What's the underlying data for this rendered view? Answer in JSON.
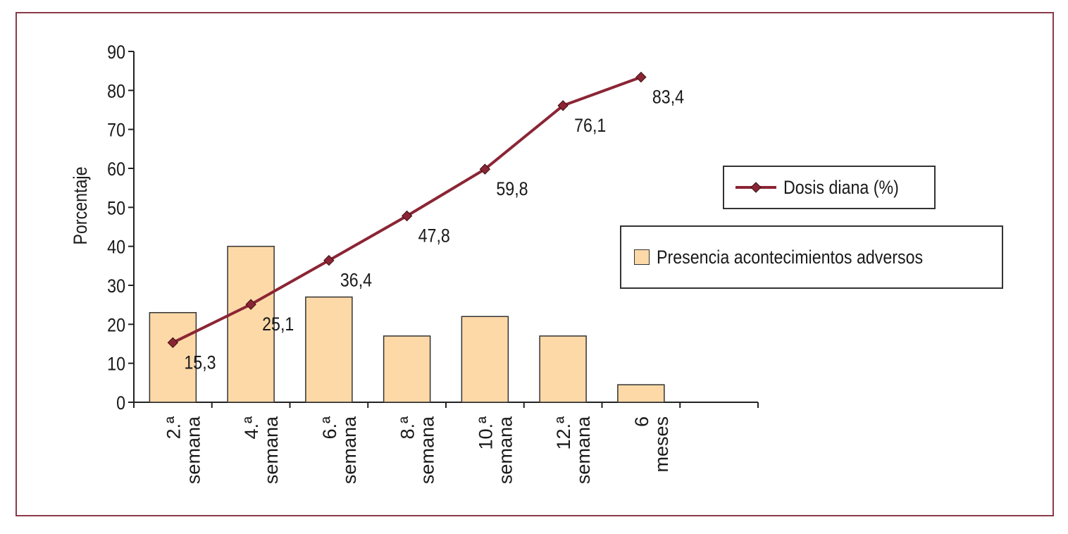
{
  "chart_data": {
    "type": "bar",
    "title": "",
    "xlabel": "",
    "ylabel": "Porcentaje",
    "ylim": [
      0,
      90
    ],
    "yticks": [
      0,
      10,
      20,
      30,
      40,
      50,
      60,
      70,
      80,
      90
    ],
    "categories": [
      [
        "2.ª",
        "semana"
      ],
      [
        "4.ª",
        "semana"
      ],
      [
        "6.ª",
        "semana"
      ],
      [
        "8.ª",
        "semana"
      ],
      [
        "10.ª",
        "semana"
      ],
      [
        "12.ª",
        "semana"
      ],
      [
        "6",
        "meses"
      ]
    ],
    "series": [
      {
        "name": "Presencia acontecimientos adversos",
        "type": "bar",
        "color": "#fdd9a8",
        "values": [
          23,
          40,
          27,
          17,
          22,
          17,
          4.5
        ]
      },
      {
        "name": "Dosis diana (%)",
        "type": "line",
        "color": "#8b2535",
        "values": [
          15.3,
          25.1,
          36.4,
          47.8,
          59.8,
          76.1,
          83.4
        ],
        "labels": [
          "15,3",
          "25,1",
          "36,4",
          "47,8",
          "59,8",
          "76,1",
          "83,4"
        ]
      }
    ],
    "grid": false,
    "legend_placement": "right"
  },
  "legend": {
    "line_label": "Dosis diana (%)",
    "bar_label": "Presencia acontecimientos adversos"
  }
}
